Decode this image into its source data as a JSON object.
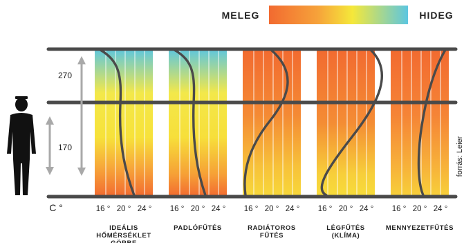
{
  "legend": {
    "warm_label": "MELEG",
    "cold_label": "HIDEG"
  },
  "unit_label": "C °",
  "heights": [
    "270",
    "170"
  ],
  "ticks": [
    "16 °",
    "20 °",
    "24 °"
  ],
  "source": "forrás: Leier",
  "columns": [
    {
      "caption": [
        "IDEÁLIS",
        "HŐMÉRSÉKLET",
        "GÖRBE"
      ],
      "gradient": "ideal"
    },
    {
      "caption": [
        "PADLÓFŰTÉS"
      ],
      "gradient": "floor"
    },
    {
      "caption": [
        "RADIÁTOROS",
        "FŰTÉS"
      ],
      "gradient": "radiator"
    },
    {
      "caption": [
        "LÉGFŰTÉS",
        "(KLÍMA)"
      ],
      "gradient": "air"
    },
    {
      "caption": [
        "MENNYEZETFŰTÉS"
      ],
      "gradient": "ceiling"
    }
  ],
  "colors": {
    "warm": "#f26a30",
    "mid": "#f5e83a",
    "cold": "#5cc6e0",
    "line": "#4a4a4a",
    "arrow": "#a9a9a9"
  }
}
